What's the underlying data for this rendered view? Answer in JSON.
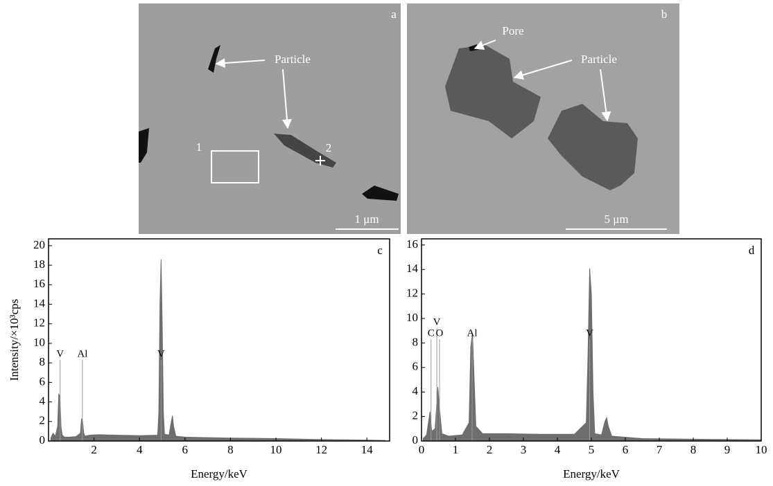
{
  "images": [
    {
      "panel": "a",
      "annotations": [
        "Particle",
        "1",
        "2"
      ],
      "scale_bar": "1 μm"
    },
    {
      "panel": "b",
      "annotations": [
        "Pore",
        "Particle"
      ],
      "scale_bar": "5 μm"
    }
  ],
  "chart_data": [
    {
      "type": "area",
      "panel": "c",
      "color": "#6e6e6e",
      "y_label": "Intensity/×10³cps",
      "x_label": "Energy/keV",
      "xlim": [
        0,
        15
      ],
      "ylim": [
        0,
        20.7
      ],
      "xticks": [
        2,
        4,
        6,
        8,
        10,
        12,
        14
      ],
      "yticks": [
        0,
        2,
        4,
        6,
        8,
        10,
        12,
        14,
        16,
        18,
        20
      ],
      "x": [
        0.1,
        0.2,
        0.3,
        0.4,
        0.45,
        0.5,
        0.55,
        0.6,
        0.7,
        0.9,
        1.2,
        1.4,
        1.45,
        1.5,
        1.55,
        1.6,
        1.8,
        2.2,
        3,
        4,
        4.8,
        4.85,
        4.9,
        4.95,
        5.0,
        5.05,
        5.1,
        5.3,
        5.4,
        5.45,
        5.5,
        5.6,
        6,
        7,
        8,
        10,
        12,
        14,
        14.8
      ],
      "values": [
        0.3,
        0.8,
        0.5,
        1.5,
        4.8,
        4.6,
        1.5,
        0.6,
        0.4,
        0.4,
        0.45,
        0.8,
        2.3,
        2.0,
        0.8,
        0.5,
        0.6,
        0.65,
        0.6,
        0.55,
        0.6,
        3,
        14,
        18.6,
        12,
        3,
        0.7,
        0.6,
        2,
        2.6,
        1.5,
        0.5,
        0.4,
        0.35,
        0.3,
        0.25,
        0.15,
        0.1,
        0.05
      ],
      "markers": [
        {
          "label": "V",
          "x": 0.51,
          "height": 8.3
        },
        {
          "label": "Al",
          "x": 1.49,
          "height": 8.3
        },
        {
          "label": "V",
          "x": 4.95,
          "height": 8.3
        }
      ]
    },
    {
      "type": "area",
      "panel": "d",
      "color": "#6e6e6e",
      "x_label": "Energy/keV",
      "xlim": [
        0,
        10
      ],
      "ylim": [
        0,
        16.5
      ],
      "xticks": [
        0,
        1,
        2,
        3,
        4,
        5,
        6,
        7,
        8,
        9,
        10
      ],
      "yticks": [
        0,
        2,
        4,
        6,
        8,
        10,
        12,
        14,
        16
      ],
      "x": [
        0.05,
        0.15,
        0.25,
        0.3,
        0.4,
        0.48,
        0.52,
        0.6,
        0.8,
        1.2,
        1.4,
        1.45,
        1.5,
        1.55,
        1.6,
        1.8,
        2.5,
        3.5,
        4.5,
        4.85,
        4.9,
        4.95,
        5.0,
        5.05,
        5.1,
        5.3,
        5.4,
        5.45,
        5.5,
        5.6,
        6.5,
        8,
        10
      ],
      "values": [
        0.2,
        0.5,
        2.4,
        0.8,
        1.0,
        4.4,
        3.0,
        0.6,
        0.4,
        0.5,
        1.5,
        7.7,
        8.8,
        5,
        1.2,
        0.6,
        0.6,
        0.55,
        0.55,
        1.5,
        7,
        14.1,
        12,
        4,
        0.6,
        0.5,
        1.6,
        1.9,
        1.2,
        0.4,
        0.2,
        0.15,
        0.1
      ],
      "markers": [
        {
          "label": "C",
          "x": 0.28,
          "height": 8.3
        },
        {
          "label": "V",
          "x": 0.45,
          "height": 9.2
        },
        {
          "label": "O",
          "x": 0.53,
          "height": 8.3
        },
        {
          "label": "Al",
          "x": 1.49,
          "height": 8.3
        },
        {
          "label": "V",
          "x": 4.95,
          "height": 8.3
        }
      ]
    }
  ]
}
